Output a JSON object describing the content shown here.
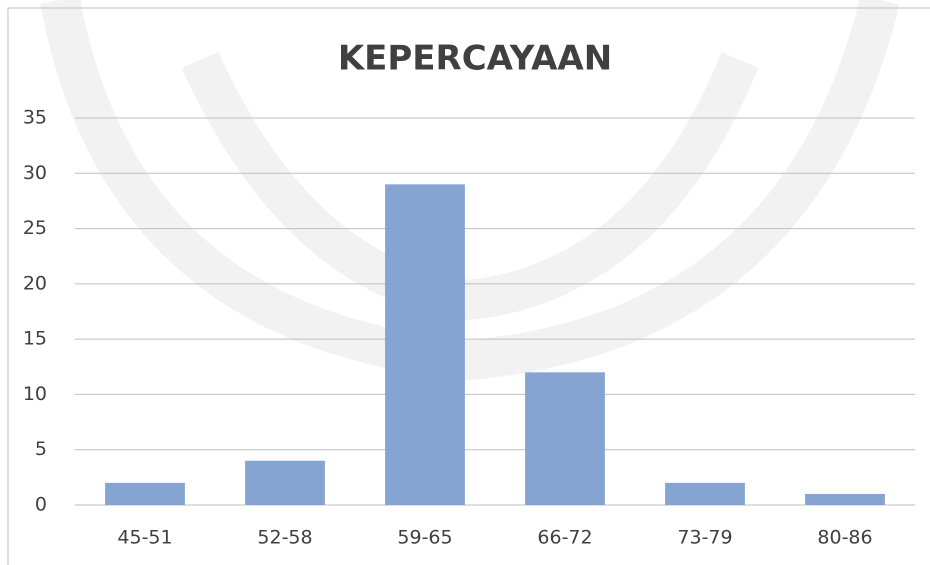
{
  "chart_data": {
    "type": "bar",
    "title": "KEPERCAYAAN",
    "categories": [
      "45-51",
      "52-58",
      "59-65",
      "66-72",
      "73-79",
      "80-86"
    ],
    "values": [
      2,
      4,
      29,
      12,
      2,
      1
    ],
    "color": "#7f9fcf",
    "ylim": [
      0,
      35
    ],
    "yticks": [
      0,
      5,
      10,
      15,
      20,
      25,
      30,
      35
    ],
    "grid": true
  }
}
